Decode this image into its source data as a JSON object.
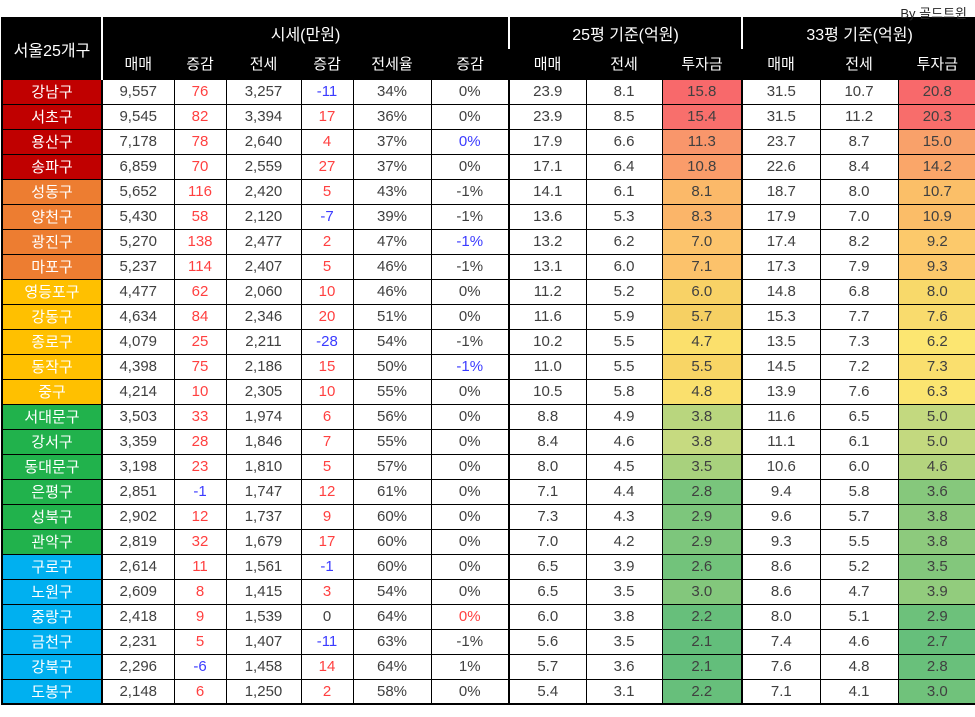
{
  "credit": "By 골드트윈",
  "palette": {
    "up": "#FF4040",
    "down": "#3B3BFF",
    "text": "#404040"
  },
  "chart_data": {
    "type": "table",
    "title": "서울25개구",
    "units": {
      "sise": "만원",
      "pyeong": "억원"
    },
    "column_groups": [
      {
        "label": "시세(만원)",
        "span": 6
      },
      {
        "label": "25평 기준(억원)",
        "span": 3
      },
      {
        "label": "33평 기준(억원)",
        "span": 3
      }
    ],
    "columns": [
      "매매",
      "증감",
      "전세",
      "증감",
      "전세율",
      "증감",
      "매매",
      "전세",
      "투자금",
      "매매",
      "전세",
      "투자금"
    ],
    "rows": [
      {
        "name": "강남구",
        "name_bg": "#C00000",
        "values": [
          "9,557",
          "76",
          "3,257",
          "-11",
          "34%",
          "0%",
          "23.9",
          "8.1",
          "15.8",
          "31.5",
          "10.7",
          "20.8"
        ],
        "tones": {
          "1": "up",
          "3": "down"
        },
        "invest25_bg": "#F8696B",
        "invest33_bg": "#F8696B"
      },
      {
        "name": "서초구",
        "name_bg": "#C00000",
        "values": [
          "9,545",
          "82",
          "3,394",
          "17",
          "36%",
          "0%",
          "23.9",
          "8.5",
          "15.4",
          "31.5",
          "11.2",
          "20.3"
        ],
        "tones": {
          "1": "up",
          "3": "up"
        },
        "invest25_bg": "#F86F6C",
        "invest33_bg": "#F86D6B"
      },
      {
        "name": "용산구",
        "name_bg": "#C00000",
        "values": [
          "7,178",
          "78",
          "2,640",
          "4",
          "37%",
          "0%",
          "17.9",
          "6.6",
          "11.3",
          "23.7",
          "8.7",
          "15.0"
        ],
        "tones": {
          "1": "up",
          "3": "up",
          "5": "down"
        },
        "invest25_bg": "#F9966B",
        "invest33_bg": "#F9A16A"
      },
      {
        "name": "송파구",
        "name_bg": "#C00000",
        "values": [
          "6,859",
          "70",
          "2,559",
          "27",
          "37%",
          "0%",
          "17.1",
          "6.4",
          "10.8",
          "22.6",
          "8.4",
          "14.2"
        ],
        "tones": {
          "1": "up",
          "3": "up"
        },
        "invest25_bg": "#FA9C6A",
        "invest33_bg": "#FAA669"
      },
      {
        "name": "성동구",
        "name_bg": "#ED7D31",
        "values": [
          "5,652",
          "116",
          "2,420",
          "5",
          "43%",
          "-1%",
          "14.1",
          "6.1",
          "8.1",
          "18.7",
          "8.0",
          "10.7"
        ],
        "tones": {
          "1": "up",
          "3": "up"
        },
        "invest25_bg": "#FBB969",
        "invest33_bg": "#FBBF68"
      },
      {
        "name": "양천구",
        "name_bg": "#ED7D31",
        "values": [
          "5,430",
          "58",
          "2,120",
          "-7",
          "39%",
          "-1%",
          "13.6",
          "5.3",
          "8.3",
          "17.9",
          "7.0",
          "10.9"
        ],
        "tones": {
          "1": "up",
          "3": "down"
        },
        "invest25_bg": "#FBB569",
        "invest33_bg": "#FBBD68"
      },
      {
        "name": "광진구",
        "name_bg": "#ED7D31",
        "values": [
          "5,270",
          "138",
          "2,477",
          "2",
          "47%",
          "-1%",
          "13.2",
          "6.2",
          "7.0",
          "17.4",
          "8.2",
          "9.2"
        ],
        "tones": {
          "1": "up",
          "3": "up",
          "5": "down"
        },
        "invest25_bg": "#FCC46C",
        "invest33_bg": "#FCC96B"
      },
      {
        "name": "마포구",
        "name_bg": "#ED7D31",
        "values": [
          "5,237",
          "114",
          "2,407",
          "5",
          "46%",
          "-1%",
          "13.1",
          "6.0",
          "7.1",
          "17.3",
          "7.9",
          "9.3"
        ],
        "tones": {
          "1": "up",
          "3": "up"
        },
        "invest25_bg": "#FCC26B",
        "invest33_bg": "#FCC86B"
      },
      {
        "name": "영등포구",
        "name_bg": "#FFC000",
        "values": [
          "4,477",
          "62",
          "2,060",
          "10",
          "46%",
          "0%",
          "11.2",
          "5.2",
          "6.0",
          "14.8",
          "6.8",
          "8.0"
        ],
        "tones": {
          "1": "up",
          "3": "up"
        },
        "invest25_bg": "#F8D266",
        "invest33_bg": "#F8D96A"
      },
      {
        "name": "강동구",
        "name_bg": "#FFC000",
        "values": [
          "4,634",
          "84",
          "2,346",
          "20",
          "51%",
          "0%",
          "11.6",
          "5.9",
          "5.7",
          "15.3",
          "7.7",
          "7.6"
        ],
        "tones": {
          "1": "up",
          "3": "up"
        },
        "invest25_bg": "#F6D063",
        "invest33_bg": "#F9DB6D"
      },
      {
        "name": "종로구",
        "name_bg": "#FFC000",
        "values": [
          "4,079",
          "25",
          "2,211",
          "-28",
          "54%",
          "-1%",
          "10.2",
          "5.5",
          "4.7",
          "13.5",
          "7.3",
          "6.2"
        ],
        "tones": {
          "1": "up",
          "3": "down"
        },
        "invest25_bg": "#FBE06C",
        "invest33_bg": "#FCE671"
      },
      {
        "name": "동작구",
        "name_bg": "#FFC000",
        "values": [
          "4,398",
          "75",
          "2,186",
          "15",
          "50%",
          "-1%",
          "11.0",
          "5.5",
          "5.5",
          "14.5",
          "7.2",
          "7.3"
        ],
        "tones": {
          "1": "up",
          "3": "up",
          "5": "down"
        },
        "invest25_bg": "#F8D565",
        "invest33_bg": "#FADF6E"
      },
      {
        "name": "중구",
        "name_bg": "#FFC000",
        "values": [
          "4,214",
          "10",
          "2,305",
          "10",
          "55%",
          "0%",
          "10.5",
          "5.8",
          "4.8",
          "13.9",
          "7.6",
          "6.3"
        ],
        "tones": {
          "1": "up",
          "3": "up"
        },
        "invest25_bg": "#FAE06D",
        "invest33_bg": "#FBE570"
      },
      {
        "name": "서대문구",
        "name_bg": "#21B24C",
        "values": [
          "3,503",
          "33",
          "1,974",
          "6",
          "56%",
          "0%",
          "8.8",
          "4.9",
          "3.8",
          "11.6",
          "6.5",
          "5.0"
        ],
        "tones": {
          "1": "up",
          "3": "up"
        },
        "invest25_bg": "#B9D67E",
        "invest33_bg": "#C3D97F"
      },
      {
        "name": "강서구",
        "name_bg": "#21B24C",
        "values": [
          "3,359",
          "28",
          "1,846",
          "7",
          "55%",
          "0%",
          "8.4",
          "4.6",
          "3.8",
          "11.1",
          "6.1",
          "5.0"
        ],
        "tones": {
          "1": "up",
          "3": "up"
        },
        "invest25_bg": "#C6DA80",
        "invest33_bg": "#C3D97F"
      },
      {
        "name": "동대문구",
        "name_bg": "#21B24C",
        "values": [
          "3,198",
          "23",
          "1,810",
          "5",
          "57%",
          "0%",
          "8.0",
          "4.5",
          "3.5",
          "10.6",
          "6.0",
          "4.6"
        ],
        "tones": {
          "1": "up",
          "3": "up"
        },
        "invest25_bg": "#A8D17D",
        "invest33_bg": "#B4D47E"
      },
      {
        "name": "은평구",
        "name_bg": "#21B24C",
        "values": [
          "2,851",
          "-1",
          "1,747",
          "12",
          "61%",
          "0%",
          "7.1",
          "4.4",
          "2.8",
          "9.4",
          "5.8",
          "3.6"
        ],
        "tones": {
          "1": "down",
          "3": "up"
        },
        "invest25_bg": "#79C57C",
        "invest33_bg": "#86C87C"
      },
      {
        "name": "성북구",
        "name_bg": "#21B24C",
        "values": [
          "2,902",
          "12",
          "1,737",
          "9",
          "60%",
          "0%",
          "7.3",
          "4.3",
          "2.9",
          "9.6",
          "5.7",
          "3.8"
        ],
        "tones": {
          "1": "up",
          "3": "up"
        },
        "invest25_bg": "#7DC67C",
        "invest33_bg": "#8DCA7D"
      },
      {
        "name": "관악구",
        "name_bg": "#21B24C",
        "values": [
          "2,819",
          "32",
          "1,679",
          "17",
          "60%",
          "0%",
          "7.0",
          "4.2",
          "2.9",
          "9.3",
          "5.5",
          "3.8"
        ],
        "tones": {
          "1": "up",
          "3": "up"
        },
        "invest25_bg": "#7DC67C",
        "invest33_bg": "#8DCA7D"
      },
      {
        "name": "구로구",
        "name_bg": "#00B0F0",
        "values": [
          "2,614",
          "11",
          "1,561",
          "-1",
          "60%",
          "0%",
          "6.5",
          "3.9",
          "2.6",
          "8.6",
          "5.2",
          "3.5"
        ],
        "tones": {
          "1": "up",
          "3": "down"
        },
        "invest25_bg": "#72C37B",
        "invest33_bg": "#83C77C"
      },
      {
        "name": "노원구",
        "name_bg": "#00B0F0",
        "values": [
          "2,609",
          "8",
          "1,415",
          "3",
          "54%",
          "0%",
          "6.5",
          "3.5",
          "3.0",
          "8.6",
          "4.7",
          "3.9"
        ],
        "tones": {
          "1": "up",
          "3": "up"
        },
        "invest25_bg": "#83C77C",
        "invest33_bg": "#92CC7D"
      },
      {
        "name": "중랑구",
        "name_bg": "#00B0F0",
        "values": [
          "2,418",
          "9",
          "1,539",
          "0",
          "64%",
          "0%",
          "6.0",
          "3.8",
          "2.2",
          "8.0",
          "5.1",
          "2.9"
        ],
        "tones": {
          "1": "up",
          "5": "up"
        },
        "invest25_bg": "#67BF7B",
        "invest33_bg": "#6DC17B"
      },
      {
        "name": "금천구",
        "name_bg": "#00B0F0",
        "values": [
          "2,231",
          "5",
          "1,407",
          "-11",
          "63%",
          "-1%",
          "5.6",
          "3.5",
          "2.1",
          "7.4",
          "4.6",
          "2.7"
        ],
        "tones": {
          "1": "up",
          "3": "down"
        },
        "invest25_bg": "#63BE7B",
        "invest33_bg": "#66BF7B"
      },
      {
        "name": "강북구",
        "name_bg": "#00B0F0",
        "values": [
          "2,296",
          "-6",
          "1,458",
          "14",
          "64%",
          "1%",
          "5.7",
          "3.6",
          "2.1",
          "7.6",
          "4.8",
          "2.8"
        ],
        "tones": {
          "1": "down",
          "3": "up"
        },
        "invest25_bg": "#63BE7B",
        "invest33_bg": "#69C07B"
      },
      {
        "name": "도봉구",
        "name_bg": "#00B0F0",
        "values": [
          "2,148",
          "6",
          "1,250",
          "2",
          "58%",
          "0%",
          "5.4",
          "3.1",
          "2.2",
          "7.1",
          "4.1",
          "3.0"
        ],
        "tones": {
          "1": "up",
          "3": "up"
        },
        "invest25_bg": "#67BF7B",
        "invest33_bg": "#70C27B"
      }
    ]
  }
}
